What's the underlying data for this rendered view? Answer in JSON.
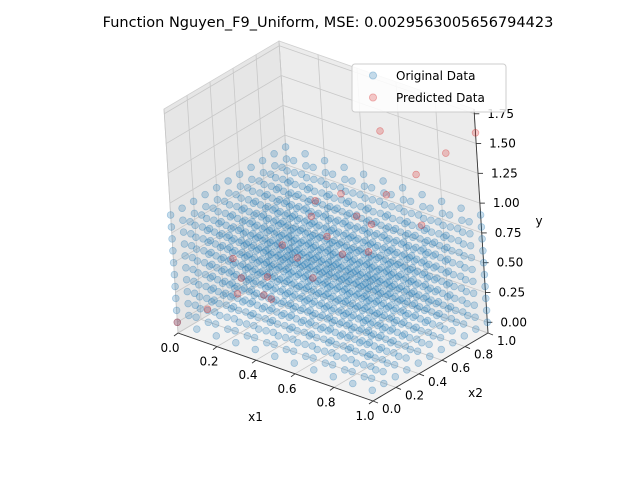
{
  "chart_data": {
    "type": "scatter",
    "projection": "3d",
    "title": "Function Nguyen_F9_Uniform, MSE: 0.0029563005656794423",
    "xlabel": "x1",
    "ylabel": "x2",
    "zlabel": "y",
    "xlim": [
      0.0,
      1.0
    ],
    "ylim": [
      0.0,
      1.0
    ],
    "zlim": [
      -0.09,
      1.79
    ],
    "xticks": [
      "0.0",
      "0.2",
      "0.4",
      "0.6",
      "0.8",
      "1.0"
    ],
    "yticks": [
      "0.0",
      "0.2",
      "0.4",
      "0.6",
      "0.8",
      "1.0"
    ],
    "zticks": [
      "0.00",
      "0.25",
      "0.50",
      "0.75",
      "1.00",
      "1.25",
      "1.50",
      "1.75"
    ],
    "grid": true,
    "legend_position": "top-right",
    "marker_alpha": 0.25,
    "series": [
      {
        "name": "Original Data",
        "color": "#1f77b4",
        "x_grid": [
          0.0,
          0.1,
          0.2,
          0.3,
          0.4,
          0.5,
          0.6,
          0.7,
          0.8,
          0.9,
          1.0
        ],
        "z_levels": [
          0.0,
          0.1,
          0.2,
          0.3,
          0.4,
          0.5,
          0.6,
          0.7,
          0.8,
          0.9
        ]
      },
      {
        "name": "Predicted Data",
        "color": "#d62728",
        "points": [
          [
            0.0,
            0.0,
            0.0
          ],
          [
            0.1,
            0.1,
            0.11
          ],
          [
            0.2,
            0.2,
            0.24
          ],
          [
            0.3,
            0.3,
            0.38
          ],
          [
            0.4,
            0.4,
            0.54
          ],
          [
            0.5,
            0.5,
            0.72
          ],
          [
            0.6,
            0.6,
            0.89
          ],
          [
            0.7,
            0.7,
            1.07
          ],
          [
            0.8,
            0.8,
            1.24
          ],
          [
            0.9,
            0.9,
            1.42
          ],
          [
            1.0,
            1.0,
            1.59
          ],
          [
            0.5,
            0.0,
            0.48
          ],
          [
            0.5,
            1.0,
            1.32
          ],
          [
            0.0,
            0.5,
            0.25
          ],
          [
            1.0,
            0.5,
            1.1
          ],
          [
            0.3,
            0.7,
            0.66
          ],
          [
            0.7,
            0.3,
            0.8
          ],
          [
            0.2,
            0.9,
            0.62
          ],
          [
            0.9,
            0.2,
            0.99
          ],
          [
            0.4,
            0.8,
            0.85
          ],
          [
            0.8,
            0.4,
            1.05
          ],
          [
            0.6,
            0.2,
            0.6
          ],
          [
            0.2,
            0.6,
            0.42
          ],
          [
            0.1,
            0.4,
            0.2
          ],
          [
            0.4,
            0.1,
            0.4
          ]
        ]
      }
    ]
  }
}
